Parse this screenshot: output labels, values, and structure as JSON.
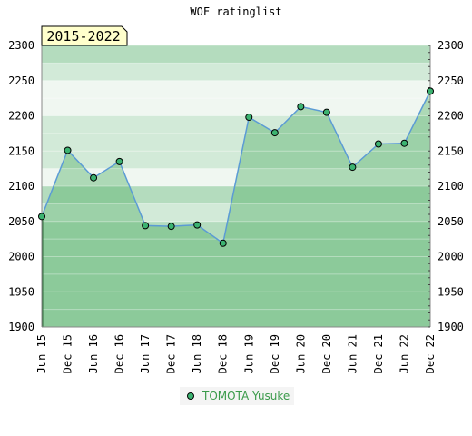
{
  "chart_data": {
    "type": "area",
    "title": "WOF ratinglist",
    "range_label": "2015-2022",
    "categories": [
      "Jun 15",
      "Dec 15",
      "Jun 16",
      "Dec 16",
      "Jun 17",
      "Dec 17",
      "Jun 18",
      "Dec 18",
      "Jun 19",
      "Dec 19",
      "Jun 20",
      "Dec 20",
      "Jun 21",
      "Dec 21",
      "Jun 22",
      "Dec 22"
    ],
    "series": [
      {
        "name": "TOMOTA Yusuke",
        "values": [
          2057,
          2151,
          2112,
          2135,
          2044,
          2043,
          2045,
          2019,
          2198,
          2176,
          2213,
          2205,
          2127,
          2160,
          2161,
          2235
        ]
      }
    ],
    "y_ticks": [
      1900,
      1950,
      2000,
      2050,
      2100,
      2150,
      2200,
      2250,
      2300
    ],
    "ylim": [
      1900,
      2300
    ],
    "legend_position": "bottom-center",
    "colors": {
      "line": "#5b9bd5",
      "marker_fill": "#3cb371",
      "area_fill": "#5ab46e",
      "legend_text": "#3a9a4a",
      "range_box_fill": "#ffffcc",
      "band_dark": "#b4dcbe",
      "band_mid": "#d2ead8",
      "band_light": "#f0f7f1"
    }
  }
}
